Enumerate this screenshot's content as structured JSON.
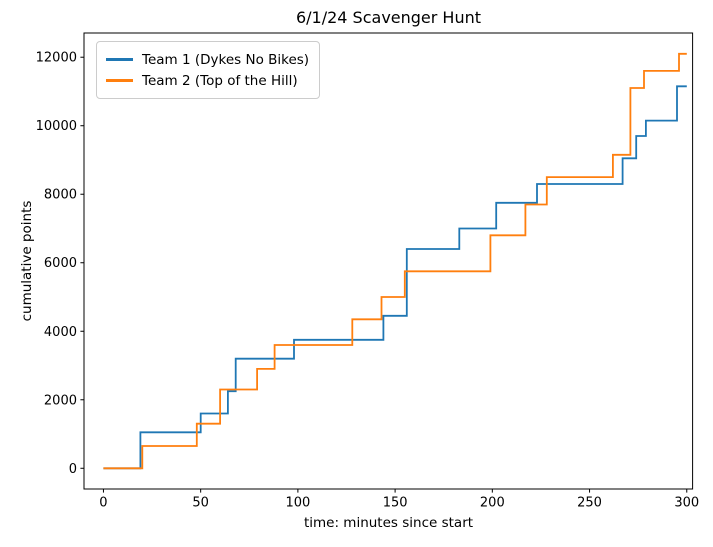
{
  "chart_data": {
    "type": "line",
    "subtype": "step-post",
    "title": "6/1/24 Scavenger Hunt",
    "xlabel": "time: minutes since start",
    "ylabel": "cumulative points",
    "xlim": [
      -10,
      303
    ],
    "ylim": [
      -605,
      12707
    ],
    "x_ticks": [
      0,
      50,
      100,
      150,
      200,
      250,
      300
    ],
    "y_ticks": [
      0,
      2000,
      4000,
      6000,
      8000,
      10000,
      12000
    ],
    "grid": false,
    "legend_position": "upper-left",
    "background_color": "#ffffff",
    "spine_color": "#000000",
    "series": [
      {
        "name": "Team 1 (Dykes No Bikes)",
        "color": "#1f77b4",
        "points": [
          [
            0,
            0
          ],
          [
            19,
            1050
          ],
          [
            50,
            1600
          ],
          [
            64,
            2250
          ],
          [
            68,
            3200
          ],
          [
            98,
            3750
          ],
          [
            144,
            4450
          ],
          [
            156,
            6400
          ],
          [
            183,
            7000
          ],
          [
            202,
            7750
          ],
          [
            223,
            8300
          ],
          [
            267,
            9050
          ],
          [
            274,
            9700
          ],
          [
            279,
            10150
          ],
          [
            295,
            11150
          ],
          [
            300,
            11150
          ]
        ]
      },
      {
        "name": "Team 2 (Top of the Hill)",
        "color": "#ff7f0e",
        "points": [
          [
            0,
            0
          ],
          [
            20,
            650
          ],
          [
            48,
            1300
          ],
          [
            60,
            2300
          ],
          [
            79,
            2900
          ],
          [
            88,
            3600
          ],
          [
            128,
            4350
          ],
          [
            143,
            5000
          ],
          [
            155,
            5750
          ],
          [
            199,
            6800
          ],
          [
            217,
            7700
          ],
          [
            228,
            8500
          ],
          [
            262,
            9150
          ],
          [
            271,
            11100
          ],
          [
            278,
            11600
          ],
          [
            296,
            12100
          ],
          [
            300,
            12100
          ]
        ]
      }
    ]
  }
}
